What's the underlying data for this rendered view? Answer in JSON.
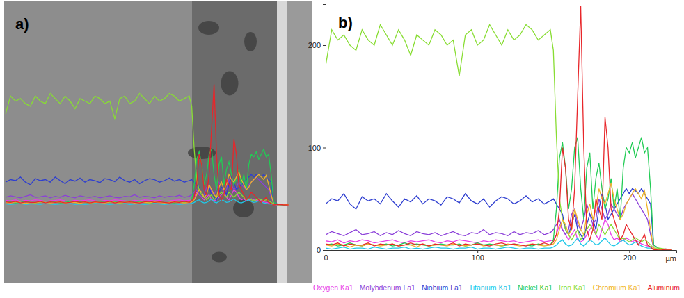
{
  "chart_data": {
    "type": "line",
    "title": "b)",
    "x_label": "µm",
    "x": [
      0,
      4,
      8,
      12,
      16,
      20,
      24,
      28,
      32,
      36,
      40,
      44,
      48,
      52,
      56,
      60,
      64,
      68,
      72,
      76,
      80,
      84,
      88,
      92,
      96,
      100,
      104,
      108,
      112,
      116,
      120,
      124,
      128,
      132,
      136,
      140,
      144,
      148,
      150,
      152,
      154,
      156,
      158,
      160,
      162,
      164,
      166,
      168,
      170,
      172,
      174,
      176,
      178,
      180,
      182,
      184,
      186,
      188,
      190,
      192,
      194,
      196,
      198,
      200,
      202,
      204,
      206,
      208,
      210,
      212,
      214,
      216,
      220,
      224,
      228
    ],
    "xlim": [
      0,
      231
    ],
    "xticks": [
      0,
      100,
      200
    ],
    "ylim": [
      0,
      240
    ],
    "yticks": [
      0,
      100,
      200
    ],
    "legend": "bottom",
    "series": [
      {
        "name": "Oxygen Ka1",
        "color": "#e83ee8",
        "values": [
          9,
          8,
          10,
          7,
          9,
          8,
          10,
          9,
          7,
          8,
          9,
          10,
          8,
          7,
          9,
          8,
          9,
          10,
          8,
          7,
          9,
          8,
          10,
          9,
          8,
          7,
          9,
          8,
          10,
          9,
          8,
          9,
          7,
          8,
          9,
          10,
          8,
          9,
          10,
          15,
          25,
          20,
          15,
          10,
          15,
          20,
          10,
          8,
          10,
          15,
          20,
          25,
          15,
          10,
          20,
          30,
          25,
          15,
          10,
          12,
          8,
          10,
          12,
          10,
          8,
          10,
          8,
          6,
          5,
          4,
          3,
          1,
          0,
          1,
          0
        ]
      },
      {
        "name": "Molybdenum La1",
        "color": "#8b3fd9",
        "values": [
          15,
          18,
          16,
          14,
          17,
          20,
          15,
          16,
          18,
          14,
          17,
          15,
          19,
          16,
          14,
          18,
          16,
          15,
          17,
          14,
          16,
          18,
          15,
          14,
          17,
          16,
          20,
          15,
          17,
          16,
          14,
          18,
          15,
          17,
          16,
          19,
          15,
          17,
          20,
          25,
          30,
          20,
          15,
          20,
          35,
          40,
          25,
          20,
          30,
          45,
          35,
          25,
          30,
          50,
          40,
          30,
          35,
          45,
          40,
          35,
          30,
          40,
          45,
          50,
          55,
          50,
          45,
          40,
          35,
          30,
          15,
          2,
          0,
          1,
          0
        ]
      },
      {
        "name": "Niobium La1",
        "color": "#2f3fd0",
        "values": [
          45,
          50,
          48,
          55,
          45,
          40,
          52,
          48,
          50,
          45,
          55,
          48,
          42,
          50,
          47,
          53,
          45,
          50,
          48,
          44,
          52,
          50,
          46,
          55,
          48,
          45,
          50,
          42,
          48,
          52,
          50,
          45,
          48,
          53,
          47,
          50,
          45,
          48,
          50,
          45,
          40,
          35,
          20,
          15,
          25,
          35,
          20,
          15,
          10,
          25,
          35,
          30,
          20,
          40,
          55,
          45,
          30,
          35,
          40,
          45,
          50,
          55,
          60,
          55,
          60,
          58,
          55,
          60,
          55,
          50,
          45,
          5,
          1,
          0,
          1
        ]
      },
      {
        "name": "Titanium Ka1",
        "color": "#20c8e8",
        "values": [
          2,
          1,
          2,
          3,
          1,
          2,
          2,
          1,
          3,
          2,
          1,
          2,
          2,
          3,
          1,
          2,
          1,
          2,
          3,
          2,
          2,
          1,
          2,
          2,
          3,
          1,
          2,
          2,
          1,
          2,
          3,
          2,
          1,
          2,
          2,
          1,
          2,
          2,
          3,
          5,
          8,
          10,
          6,
          4,
          5,
          8,
          12,
          6,
          4,
          7,
          10,
          8,
          5,
          6,
          9,
          12,
          8,
          5,
          4,
          6,
          8,
          10,
          7,
          5,
          6,
          8,
          6,
          4,
          3,
          2,
          2,
          1,
          0,
          0,
          1
        ]
      },
      {
        "name": "Nickel Ka1",
        "color": "#22cc55",
        "values": [
          5,
          6,
          4,
          5,
          7,
          5,
          4,
          6,
          5,
          5,
          6,
          4,
          5,
          7,
          5,
          6,
          5,
          4,
          5,
          6,
          5,
          5,
          6,
          4,
          5,
          7,
          5,
          6,
          5,
          4,
          5,
          6,
          5,
          5,
          4,
          6,
          5,
          5,
          10,
          40,
          90,
          105,
          80,
          40,
          60,
          100,
          110,
          60,
          30,
          80,
          95,
          40,
          70,
          85,
          60,
          40,
          50,
          70,
          40,
          60,
          30,
          80,
          100,
          95,
          105,
          90,
          100,
          110,
          95,
          100,
          60,
          5,
          1,
          0,
          1
        ]
      },
      {
        "name": "Iron Ka1",
        "color": "#88dd33",
        "values": [
          180,
          215,
          205,
          210,
          200,
          195,
          215,
          205,
          200,
          220,
          210,
          200,
          215,
          205,
          190,
          210,
          205,
          200,
          215,
          210,
          200,
          205,
          170,
          210,
          215,
          200,
          205,
          220,
          210,
          200,
          215,
          205,
          210,
          220,
          215,
          205,
          210,
          215,
          195,
          110,
          50,
          30,
          20,
          15,
          10,
          15,
          20,
          10,
          15,
          20,
          25,
          20,
          15,
          25,
          20,
          15,
          20,
          25,
          20,
          15,
          10,
          12,
          10,
          8,
          10,
          12,
          10,
          8,
          10,
          8,
          5,
          2,
          2,
          1,
          1
        ]
      },
      {
        "name": "Chromium Ka1",
        "color": "#f0b428",
        "values": [
          5,
          4,
          6,
          5,
          3,
          5,
          4,
          6,
          5,
          4,
          5,
          6,
          4,
          5,
          5,
          3,
          6,
          4,
          5,
          5,
          4,
          6,
          5,
          4,
          5,
          6,
          4,
          5,
          5,
          4,
          6,
          5,
          4,
          5,
          6,
          5,
          4,
          5,
          6,
          10,
          20,
          30,
          25,
          15,
          20,
          40,
          30,
          20,
          15,
          35,
          45,
          30,
          40,
          60,
          50,
          45,
          55,
          65,
          50,
          40,
          30,
          35,
          45,
          50,
          55,
          60,
          55,
          50,
          58,
          40,
          20,
          2,
          0,
          1,
          0
        ]
      },
      {
        "name": "Aluminum",
        "color": "#e8262a",
        "values": [
          6,
          5,
          7,
          4,
          6,
          5,
          5,
          7,
          4,
          6,
          5,
          6,
          4,
          5,
          7,
          5,
          6,
          4,
          6,
          5,
          5,
          7,
          4,
          6,
          5,
          6,
          5,
          4,
          6,
          7,
          5,
          6,
          5,
          4,
          6,
          5,
          7,
          5,
          8,
          15,
          40,
          100,
          80,
          30,
          20,
          60,
          150,
          238,
          100,
          20,
          10,
          20,
          50,
          40,
          30,
          130,
          100,
          40,
          30,
          20,
          10,
          15,
          25,
          20,
          15,
          10,
          5,
          10,
          15,
          5,
          3,
          0,
          1,
          0,
          0
        ]
      }
    ]
  },
  "image_panel": {
    "label": "a)"
  }
}
